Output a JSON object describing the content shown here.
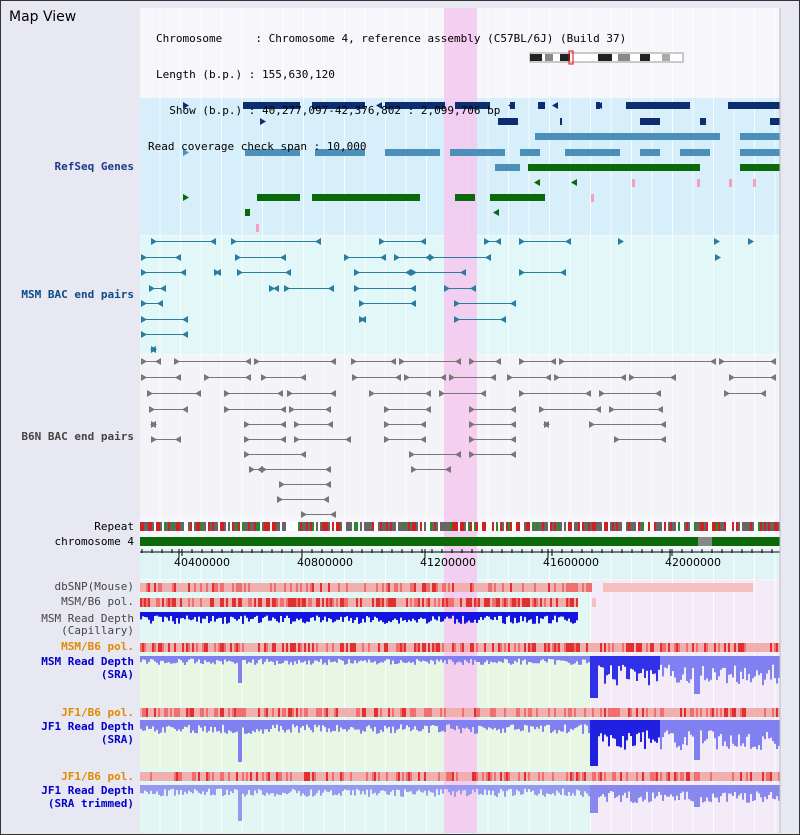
{
  "title": "Map View",
  "header": {
    "chromosome_label": "Chromosome     : ",
    "chromosome_value": "Chromosome 4, reference assembly (C57BL/6J) (Build 37)",
    "length_label": "Length (b.p.) : ",
    "length_value": "155,630,120",
    "show_label": "  Show (b.p.) : ",
    "show_value": "40,277,097-42,376,802 : 2,099,706 bp",
    "coverage_label": "Read coverage check span : ",
    "coverage_value": "10,000"
  },
  "tracks": {
    "refseq": "RefSeq Genes",
    "msm_bac": "MSM BAC end pairs",
    "b6n_bac": "B6N BAC end pairs",
    "repeat": "Repeat",
    "chromosome": "chromosome 4",
    "dbsnp": "dbSNP(Mouse)",
    "msm_b6_pol": "MSM/B6 pol.",
    "msm_depth_cap_1": "MSM Read Depth",
    "msm_depth_cap_2": "(Capillary)",
    "msm_b6_pol_sra": "MSM/B6 pol.",
    "msm_depth_sra_1": "MSM Read Depth",
    "msm_depth_sra_2": "(SRA)",
    "jf1_b6_pol_1": "JF1/B6 pol.",
    "jf1_depth_sra_1": "JF1 Read Depth",
    "jf1_depth_sra_2": "(SRA)",
    "jf1_b6_pol_2": "JF1/B6 pol.",
    "jf1_depth_trim_1": "JF1 Read Depth",
    "jf1_depth_trim_2": "(SRA trimmed)"
  },
  "axis": {
    "ticks": [
      "40400000",
      "40800000",
      "41200000",
      "41600000",
      "42000000"
    ]
  },
  "colors": {
    "highlight": "#f5c8ef",
    "refseq_bg": "#d6effa",
    "msm_bac_bg": "#e2f8f8",
    "navy_gene": "#0c2e6e",
    "steel_gene": "#4a90b8",
    "green_gene": "#0a6a0a",
    "chrom_green": "#0a6a0a",
    "depth_blue": "#1414e0",
    "depth_lavender": "#8080f0",
    "snp_red": "#e03030",
    "snp_pink": "#f0b0b0"
  }
}
